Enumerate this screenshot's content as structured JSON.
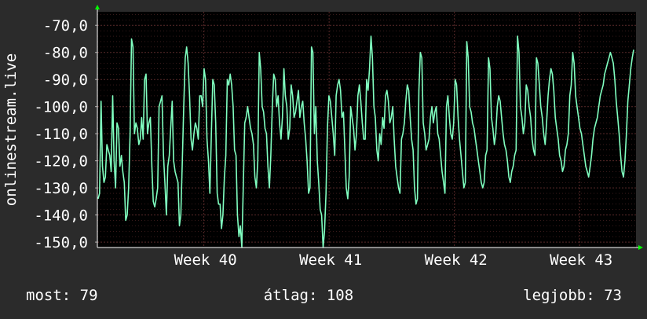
{
  "chart_data": {
    "type": "line",
    "ylabel": "onlinestream.live",
    "ylim": [
      -152,
      -65
    ],
    "y_ticks": [
      -70,
      -80,
      -90,
      -100,
      -110,
      -120,
      -130,
      -140,
      -150
    ],
    "y_tick_labels": [
      "-70,0",
      "-80,0",
      "-90,0",
      "-100,0",
      "-110,0",
      "-120,0",
      "-130,0",
      "-140,0",
      "-150,0"
    ],
    "x_range": [
      0,
      4.3
    ],
    "x_ticks": [
      0.85,
      1.85,
      2.85,
      3.85
    ],
    "x_tick_labels": [
      "Week 40",
      "Week 41",
      "Week 42",
      "Week 43"
    ],
    "grid": true,
    "series": [
      {
        "color": "#80ffc0",
        "values": [
          -134,
          -132,
          -98,
          -122,
          -128,
          -126,
          -114,
          -116,
          -118,
          -124,
          -96,
          -120,
          -130,
          -106,
          -108,
          -122,
          -118,
          -124,
          -128,
          -142,
          -140,
          -130,
          -110,
          -75,
          -78,
          -110,
          -106,
          -108,
          -114,
          -112,
          -104,
          -112,
          -90,
          -88,
          -110,
          -106,
          -104,
          -122,
          -135,
          -137,
          -134,
          -130,
          -100,
          -98,
          -96,
          -118,
          -128,
          -140,
          -122,
          -118,
          -108,
          -98,
          -120,
          -124,
          -126,
          -128,
          -144,
          -140,
          -120,
          -100,
          -82,
          -78,
          -84,
          -96,
          -112,
          -116,
          -110,
          -106,
          -108,
          -112,
          -96,
          -96,
          -100,
          -86,
          -90,
          -112,
          -120,
          -132,
          -110,
          -90,
          -92,
          -106,
          -132,
          -136,
          -136,
          -145,
          -140,
          -126,
          -118,
          -90,
          -92,
          -88,
          -92,
          -100,
          -116,
          -118,
          -140,
          -148,
          -144,
          -152,
          -130,
          -106,
          -104,
          -100,
          -104,
          -108,
          -110,
          -114,
          -126,
          -130,
          -120,
          -80,
          -86,
          -100,
          -102,
          -108,
          -110,
          -122,
          -130,
          -118,
          -100,
          -88,
          -90,
          -100,
          -96,
          -106,
          -112,
          -104,
          -86,
          -96,
          -100,
          -112,
          -108,
          -92,
          -96,
          -104,
          -102,
          -98,
          -94,
          -104,
          -100,
          -98,
          -106,
          -112,
          -120,
          -132,
          -130,
          -78,
          -80,
          -110,
          -100,
          -120,
          -128,
          -138,
          -140,
          -152,
          -146,
          -132,
          -108,
          -96,
          -98,
          -104,
          -110,
          -118,
          -96,
          -92,
          -90,
          -94,
          -104,
          -102,
          -116,
          -130,
          -134,
          -126,
          -100,
          -104,
          -108,
          -116,
          -110,
          -96,
          -92,
          -98,
          -106,
          -112,
          -112,
          -90,
          -94,
          -86,
          -74,
          -82,
          -100,
          -104,
          -116,
          -120,
          -110,
          -114,
          -104,
          -108,
          -96,
          -94,
          -98,
          -106,
          -104,
          -100,
          -112,
          -122,
          -126,
          -130,
          -132,
          -112,
          -110,
          -106,
          -98,
          -92,
          -94,
          -104,
          -112,
          -116,
          -130,
          -136,
          -134,
          -94,
          -80,
          -82,
          -106,
          -110,
          -116,
          -114,
          -112,
          -104,
          -100,
          -106,
          -102,
          -100,
          -110,
          -112,
          -118,
          -124,
          -128,
          -132,
          -100,
          -96,
          -104,
          -110,
          -112,
          -106,
          -90,
          -92,
          -104,
          -112,
          -118,
          -124,
          -130,
          -128,
          -76,
          -82,
          -100,
          -102,
          -106,
          -108,
          -112,
          -116,
          -120,
          -124,
          -128,
          -130,
          -128,
          -118,
          -116,
          -82,
          -86,
          -104,
          -108,
          -114,
          -110,
          -100,
          -96,
          -98,
          -104,
          -110,
          -114,
          -116,
          -120,
          -126,
          -128,
          -124,
          -122,
          -118,
          -116,
          -74,
          -80,
          -100,
          -104,
          -110,
          -106,
          -92,
          -94,
          -100,
          -104,
          -112,
          -116,
          -118,
          -82,
          -84,
          -92,
          -100,
          -104,
          -110,
          -114,
          -106,
          -96,
          -90,
          -86,
          -88,
          -94,
          -104,
          -108,
          -112,
          -118,
          -120,
          -124,
          -122,
          -116,
          -114,
          -110,
          -96,
          -92,
          -80,
          -84,
          -96,
          -100,
          -104,
          -108,
          -110,
          -114,
          -118,
          -122,
          -124,
          -126,
          -122,
          -118,
          -112,
          -108,
          -106,
          -104,
          -100,
          -96,
          -94,
          -92,
          -88,
          -86,
          -84,
          -82,
          -80,
          -82,
          -84,
          -90,
          -98,
          -104,
          -110,
          -118,
          -124,
          -126,
          -120,
          -110,
          -98,
          -92,
          -86,
          -82,
          -79
        ]
      }
    ]
  },
  "footer": {
    "current": "most: 79",
    "average": "átlag: 108",
    "best": "legjobb: 73"
  },
  "colors": {
    "background": "#2b2b2b",
    "plot_background": "#000000",
    "line": "#80ffc0",
    "axis_arrow": "#00ff00",
    "grid": "#5a2a2a"
  }
}
